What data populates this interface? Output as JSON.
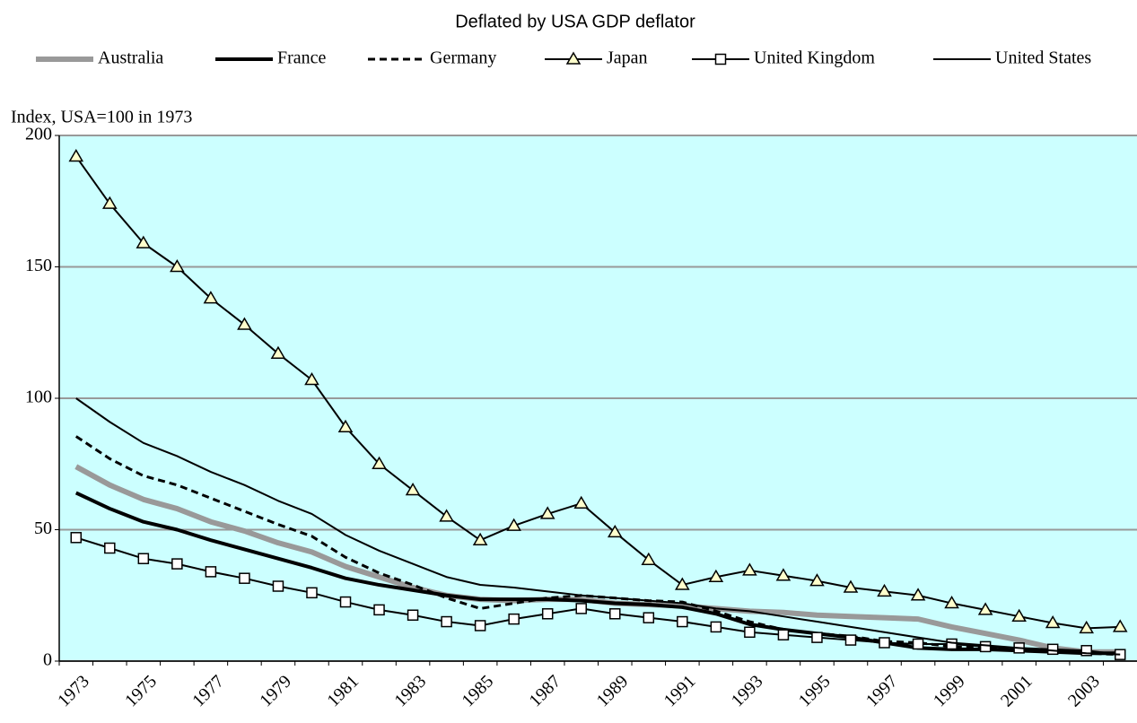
{
  "chart_data": {
    "type": "line",
    "title": "Deflated by USA GDP deflator",
    "ylabel": "Index,  USA=100 in 1973",
    "categories": [
      "1973",
      null,
      "1975",
      null,
      "1977",
      null,
      "1979",
      null,
      "1981",
      null,
      "1983",
      null,
      "1985",
      null,
      "1987",
      null,
      "1989",
      null,
      "1991",
      null,
      "1993",
      null,
      "1995",
      null,
      "1997",
      null,
      "1999",
      null,
      "2001",
      null,
      "2003",
      null
    ],
    "ylim": [
      0,
      200
    ],
    "yticks": [
      0,
      50,
      100,
      150,
      200
    ],
    "grid": true,
    "background": "#ccffff",
    "legend": "top",
    "series": [
      {
        "name": "Australia",
        "color": "#999999",
        "width": 6,
        "values": [
          74,
          67,
          61.5,
          58,
          53,
          49.5,
          45,
          41.5,
          36,
          32,
          28,
          25,
          23.5,
          23,
          23.5,
          23.5,
          22,
          21.5,
          21,
          20,
          19,
          18.5,
          17.5,
          17,
          16.5,
          16,
          13,
          10.5,
          8,
          5,
          3.5,
          3.5
        ]
      },
      {
        "name": "France",
        "color": "#000000",
        "width": 4,
        "values": [
          64,
          58,
          53,
          50,
          46,
          42.5,
          39,
          35.5,
          31.5,
          29,
          27,
          25,
          23.5,
          23.5,
          23.5,
          23,
          22,
          21.5,
          20.5,
          18,
          14,
          12,
          10.5,
          9,
          7,
          5,
          4.5,
          4.5,
          4,
          3.5,
          3,
          3
        ]
      },
      {
        "name": "Germany",
        "color": "#000000",
        "width": 3,
        "dash": "8 5",
        "values": [
          85.5,
          77,
          70.5,
          67,
          62,
          57,
          52,
          47.5,
          39.5,
          33.5,
          29,
          24,
          20,
          22,
          24,
          25,
          24,
          23,
          22.5,
          19,
          15,
          12,
          10.5,
          9.5,
          7.5,
          7,
          5.5,
          5,
          4.5,
          4,
          3,
          2.5
        ]
      },
      {
        "name": "Japan",
        "color": "#000000",
        "width": 2,
        "marker": "triangle",
        "marker_fill": "#ffffcc",
        "values": [
          192,
          174,
          159,
          150,
          138,
          128,
          117,
          107,
          89,
          75,
          65,
          55,
          46,
          51.5,
          56,
          60,
          49,
          38.5,
          29,
          32,
          34.5,
          32.5,
          30.5,
          28,
          26.5,
          25,
          22,
          19.5,
          17,
          14.5,
          12.5,
          13
        ]
      },
      {
        "name": "United Kingdom",
        "color": "#000000",
        "width": 2,
        "marker": "square",
        "marker_fill": "#ffffff",
        "values": [
          47,
          43,
          39,
          37,
          34,
          31.5,
          28.5,
          26,
          22.5,
          19.5,
          17.5,
          15,
          13.5,
          16,
          18,
          20,
          18,
          16.5,
          15,
          13,
          11,
          10,
          9,
          8,
          7,
          6.5,
          6.5,
          5.5,
          5,
          4.5,
          4,
          2.5
        ]
      },
      {
        "name": "United States",
        "color": "#000000",
        "width": 2,
        "values": [
          100,
          91,
          83,
          78,
          72,
          67,
          61,
          56,
          48,
          42,
          37,
          32,
          29,
          28,
          26.5,
          25,
          24,
          23,
          22,
          20,
          19,
          17,
          15,
          13,
          11,
          9,
          7,
          6,
          5,
          4,
          3,
          2.5
        ]
      }
    ]
  }
}
